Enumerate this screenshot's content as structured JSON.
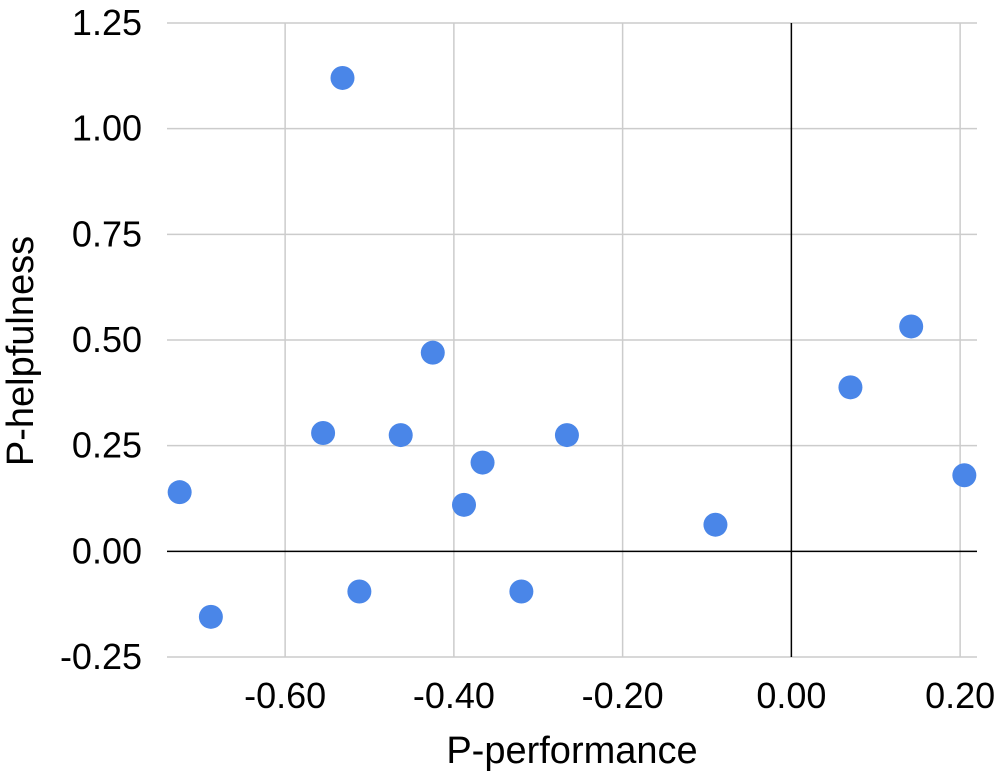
{
  "chart_data": {
    "type": "scatter",
    "title": "",
    "xlabel": "P-performance",
    "ylabel": "P-helpfulness",
    "xlim": [
      -0.74,
      0.22
    ],
    "ylim": [
      -0.25,
      1.25
    ],
    "x_ticks": [
      -0.6,
      -0.4,
      -0.2,
      0.0,
      0.2
    ],
    "x_tick_labels": [
      "-0.60",
      "-0.40",
      "-0.20",
      "0.00",
      "0.20"
    ],
    "y_ticks": [
      -0.25,
      0.0,
      0.25,
      0.5,
      0.75,
      1.0,
      1.25
    ],
    "y_tick_labels": [
      "-0.25",
      "0.00",
      "0.25",
      "0.50",
      "0.75",
      "1.00",
      "1.25"
    ],
    "grid": true,
    "legend": "none",
    "marker_color": "#4a86e8",
    "series": [
      {
        "points": [
          {
            "x": -0.725,
            "y": 0.14
          },
          {
            "x": -0.688,
            "y": -0.155
          },
          {
            "x": -0.555,
            "y": 0.28
          },
          {
            "x": -0.532,
            "y": 1.12
          },
          {
            "x": -0.512,
            "y": -0.095
          },
          {
            "x": -0.463,
            "y": 0.275
          },
          {
            "x": -0.425,
            "y": 0.47
          },
          {
            "x": -0.388,
            "y": 0.11
          },
          {
            "x": -0.366,
            "y": 0.21
          },
          {
            "x": -0.32,
            "y": -0.095
          },
          {
            "x": -0.266,
            "y": 0.275
          },
          {
            "x": -0.09,
            "y": 0.063
          },
          {
            "x": 0.07,
            "y": 0.388
          },
          {
            "x": 0.142,
            "y": 0.532
          },
          {
            "x": 0.205,
            "y": 0.18
          }
        ]
      }
    ]
  }
}
